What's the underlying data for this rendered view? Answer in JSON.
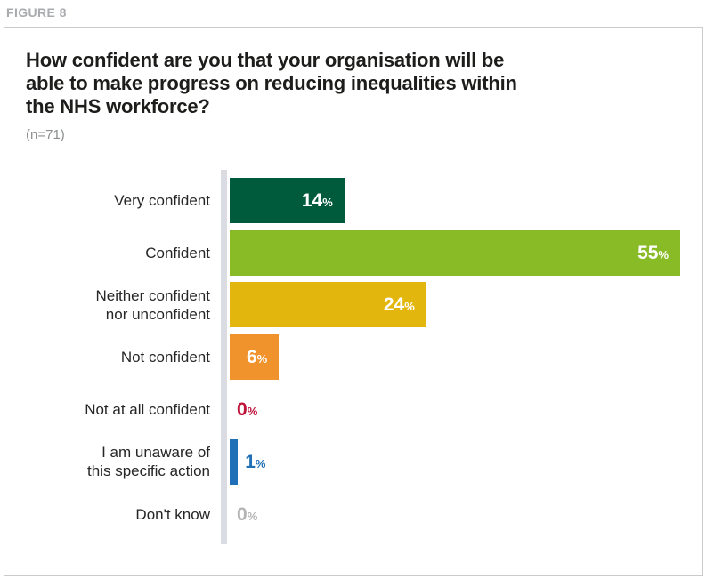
{
  "figure_label": "FIGURE 8",
  "chart_data": {
    "type": "bar",
    "orientation": "horizontal",
    "title": "How confident are you that your organisation will be able to make progress on reducing inequalities within the NHS workforce?",
    "title_lines": [
      "How confident are you that your organisation will be",
      "able to make progress on reducing inequalities within",
      "the NHS workforce?"
    ],
    "subtitle": "(n=71)",
    "unit": "%",
    "categories": [
      "Very confident",
      "Confident",
      "Neither confident nor unconfident",
      "Not confident",
      "Not at all confident",
      "I am unaware of this specific action",
      "Don't know"
    ],
    "category_lines": [
      [
        "Very confident"
      ],
      [
        "Confident"
      ],
      [
        "Neither confident",
        "nor unconfident"
      ],
      [
        "Not confident"
      ],
      [
        "Not at all confident"
      ],
      [
        "I am unaware of",
        "this specific action"
      ],
      [
        "Don't know"
      ]
    ],
    "values": [
      14,
      55,
      24,
      6,
      0,
      1,
      0
    ],
    "value_labels": [
      "14%",
      "55%",
      "24%",
      "6%",
      "0%",
      "1%",
      "0%"
    ],
    "bar_colors": [
      "#005a3c",
      "#89bb27",
      "#e3b60e",
      "#f0932d",
      "#be1239",
      "#1f70b7",
      "#b4b4b4"
    ],
    "xlim": [
      0,
      55
    ],
    "grid": false,
    "legend": false,
    "colors": {
      "value_label_inside": "#ffffff",
      "axis_line": "#dbdce1",
      "category_label": "#262626",
      "title": "#1d1d1b",
      "subtitle": "#8c8e90",
      "figure_label": "#a9abae",
      "card_border": "#c9cbcd",
      "card_background": "#ffffff"
    }
  }
}
